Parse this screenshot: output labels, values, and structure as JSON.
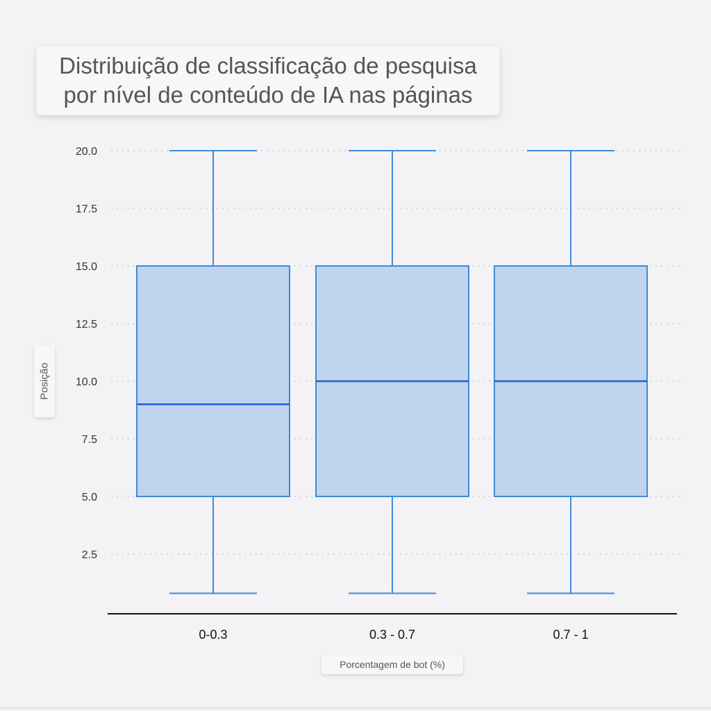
{
  "chart_data": {
    "type": "boxplot",
    "title": "Distribuição de classificação de pesquisa por nível de conteúdo de IA nas páginas",
    "title_lines": [
      "Distribuição de classificação de pesquisa",
      "por nível de conteúdo de IA nas páginas"
    ],
    "xlabel": "Porcentagem de bot (%)",
    "ylabel": "Posição",
    "categories": [
      "0-0.3",
      "0.3 - 0.7",
      "0.7 - 1"
    ],
    "boxes": [
      {
        "category": "0-0.3",
        "whisker_low": 0.8,
        "q1": 5.0,
        "median": 9.0,
        "q3": 15.0,
        "whisker_high": 20.0
      },
      {
        "category": "0.3 - 0.7",
        "whisker_low": 0.8,
        "q1": 5.0,
        "median": 10.0,
        "q3": 15.0,
        "whisker_high": 20.0
      },
      {
        "category": "0.7 - 1",
        "whisker_low": 0.8,
        "q1": 5.0,
        "median": 10.0,
        "q3": 15.0,
        "whisker_high": 20.0
      }
    ],
    "yticks": [
      2.5,
      5.0,
      7.5,
      10.0,
      12.5,
      15.0,
      17.5,
      20.0
    ],
    "ytick_labels": [
      "2.5",
      "5.0",
      "7.5",
      "10.0",
      "12.5",
      "15.0",
      "17.5",
      "20.0"
    ],
    "ylim": [
      0,
      20.2
    ],
    "grid": true,
    "colors": {
      "box_fill": "#bfd4ee",
      "box_stroke": "#3f8ad8",
      "median": "#1f5fcf",
      "grid": "#d6d6dc",
      "axis": "#111111"
    }
  }
}
